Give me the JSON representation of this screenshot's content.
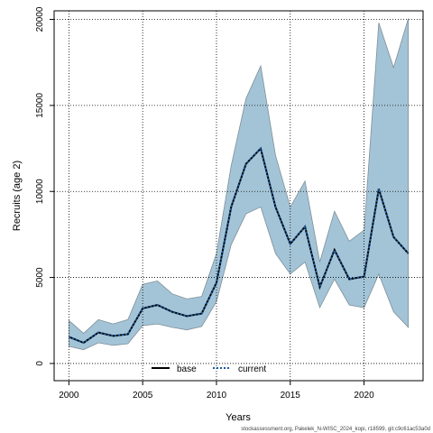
{
  "chart_data": {
    "type": "line",
    "title": "",
    "xlabel": "Years",
    "ylabel": "Recruits (age 2)",
    "xlim": [
      1999,
      2024
    ],
    "ylim": [
      -1000,
      20500
    ],
    "x_ticks": [
      2000,
      2005,
      2010,
      2015,
      2020
    ],
    "x_tick_labels": [
      "2000",
      "2005",
      "2010",
      "2015",
      "2020"
    ],
    "y_ticks": [
      0,
      5000,
      10000,
      15000,
      20000
    ],
    "y_tick_labels": [
      "0",
      "5000",
      "10000",
      "15000",
      "20000"
    ],
    "grid": true,
    "legend_position": "bottom-center",
    "x": [
      2000,
      2001,
      2002,
      2003,
      2004,
      2005,
      2006,
      2007,
      2008,
      2009,
      2010,
      2011,
      2012,
      2013,
      2014,
      2015,
      2016,
      2017,
      2018,
      2019,
      2020,
      2021,
      2022,
      2023
    ],
    "band": {
      "color": "#a3c4d6",
      "stroke": "#7f8f99",
      "lower": [
        1000,
        800,
        1200,
        1050,
        1150,
        2200,
        2300,
        2100,
        1950,
        2150,
        3600,
        6900,
        8700,
        9100,
        6400,
        5200,
        5900,
        3250,
        4900,
        3400,
        3250,
        5200,
        3000,
        2100
      ],
      "upper": [
        2500,
        1750,
        2550,
        2300,
        2550,
        4600,
        4800,
        4050,
        3750,
        3900,
        6400,
        11500,
        15400,
        17300,
        12100,
        9100,
        10600,
        5900,
        8850,
        7100,
        7750,
        19800,
        17200,
        20050
      ]
    },
    "series": [
      {
        "name": "base",
        "color": "#000000",
        "style": "solid",
        "values": [
          1550,
          1200,
          1800,
          1600,
          1700,
          3200,
          3400,
          3000,
          2750,
          2900,
          4700,
          9100,
          11600,
          12500,
          9100,
          6950,
          7950,
          4450,
          6600,
          4900,
          5050,
          10150,
          7350,
          6400
        ]
      },
      {
        "name": "current",
        "color": "#1f5a9e",
        "style": "dotted",
        "values": [
          1550,
          1200,
          1800,
          1600,
          1700,
          3200,
          3400,
          3000,
          2750,
          2900,
          4700,
          9100,
          11600,
          12500,
          9100,
          6950,
          7950,
          4450,
          6600,
          4900,
          5050,
          10150,
          7350,
          6400
        ]
      }
    ]
  },
  "footer": "stockassessment.org, Pakelek_N-WISC_2024_kopi, r18599, git:c9c61ac53a0d"
}
